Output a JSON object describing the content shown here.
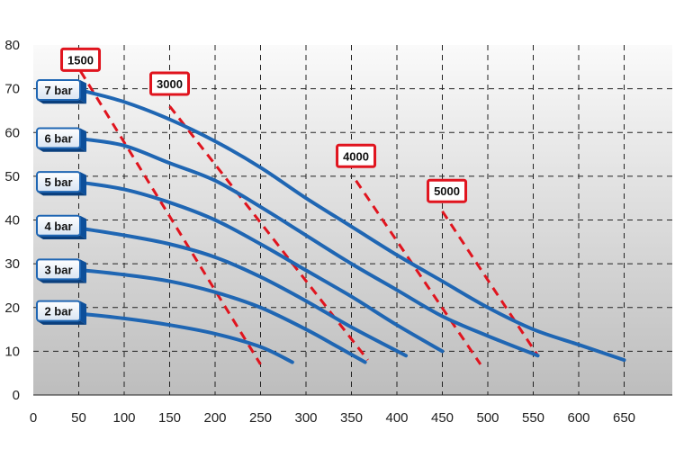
{
  "chart_data": {
    "type": "line",
    "title": "",
    "xlabel": "",
    "ylabel": "",
    "xlim": [
      0,
      700
    ],
    "ylim": [
      0,
      80
    ],
    "x_ticks": [
      "0",
      "50",
      "100",
      "150",
      "200",
      "250",
      "300",
      "350",
      "400",
      "450",
      "500",
      "550",
      "600",
      "650"
    ],
    "y_ticks": [
      "0",
      "10",
      "20",
      "30",
      "40",
      "50",
      "60",
      "70",
      "80"
    ],
    "grid": true,
    "pressure_series": [
      {
        "name": "7 bar",
        "color": "#1f66b3",
        "points": [
          [
            55,
            69.5
          ],
          [
            100,
            67
          ],
          [
            150,
            63
          ],
          [
            200,
            58
          ],
          [
            250,
            52
          ],
          [
            300,
            45
          ],
          [
            350,
            38.5
          ],
          [
            400,
            32
          ],
          [
            450,
            26
          ],
          [
            500,
            20
          ],
          [
            550,
            15
          ],
          [
            600,
            11.5
          ],
          [
            650,
            8
          ]
        ]
      },
      {
        "name": "6 bar",
        "color": "#1f66b3",
        "points": [
          [
            55,
            58.5
          ],
          [
            100,
            57
          ],
          [
            150,
            53
          ],
          [
            200,
            49
          ],
          [
            250,
            43
          ],
          [
            300,
            36.5
          ],
          [
            350,
            30
          ],
          [
            400,
            24
          ],
          [
            450,
            18
          ],
          [
            500,
            13.5
          ],
          [
            555,
            9
          ]
        ]
      },
      {
        "name": "5 bar",
        "color": "#1f66b3",
        "points": [
          [
            55,
            48.5
          ],
          [
            100,
            47
          ],
          [
            150,
            44
          ],
          [
            200,
            40
          ],
          [
            250,
            34.5
          ],
          [
            300,
            28.5
          ],
          [
            350,
            22.5
          ],
          [
            400,
            16
          ],
          [
            450,
            10
          ]
        ]
      },
      {
        "name": "4 bar",
        "color": "#1f66b3",
        "points": [
          [
            55,
            38
          ],
          [
            100,
            36.5
          ],
          [
            150,
            34.5
          ],
          [
            200,
            31.5
          ],
          [
            250,
            27
          ],
          [
            300,
            21.5
          ],
          [
            350,
            15.5
          ],
          [
            410,
            9
          ]
        ]
      },
      {
        "name": "3 bar",
        "color": "#1f66b3",
        "points": [
          [
            55,
            28.5
          ],
          [
            100,
            27.5
          ],
          [
            150,
            26
          ],
          [
            200,
            23.5
          ],
          [
            250,
            20
          ],
          [
            300,
            15
          ],
          [
            335,
            11
          ],
          [
            365,
            7.5
          ]
        ]
      },
      {
        "name": "2 bar",
        "color": "#1f66b3",
        "points": [
          [
            55,
            18.5
          ],
          [
            100,
            17.5
          ],
          [
            150,
            16
          ],
          [
            200,
            14
          ],
          [
            250,
            11
          ],
          [
            285,
            7.5
          ]
        ]
      }
    ],
    "rpm_series": [
      {
        "name": "1500",
        "color": "#e0141e",
        "points": [
          [
            52,
            74
          ],
          [
            250,
            7
          ]
        ]
      },
      {
        "name": "3000",
        "color": "#e0141e",
        "points": [
          [
            150,
            66
          ],
          [
            368,
            8
          ]
        ]
      },
      {
        "name": "4000",
        "color": "#e0141e",
        "points": [
          [
            355,
            49
          ],
          [
            492,
            7
          ]
        ]
      },
      {
        "name": "5000",
        "color": "#e0141e",
        "points": [
          [
            450,
            42
          ],
          [
            555,
            9
          ]
        ]
      }
    ],
    "pressure_label_anchor_y": [
      69.5,
      58.5,
      48.5,
      38.5,
      28.5,
      19
    ],
    "rpm_label_anchor": [
      [
        52,
        75
      ],
      [
        150,
        69.5
      ],
      [
        355,
        53
      ],
      [
        455,
        45
      ]
    ]
  }
}
